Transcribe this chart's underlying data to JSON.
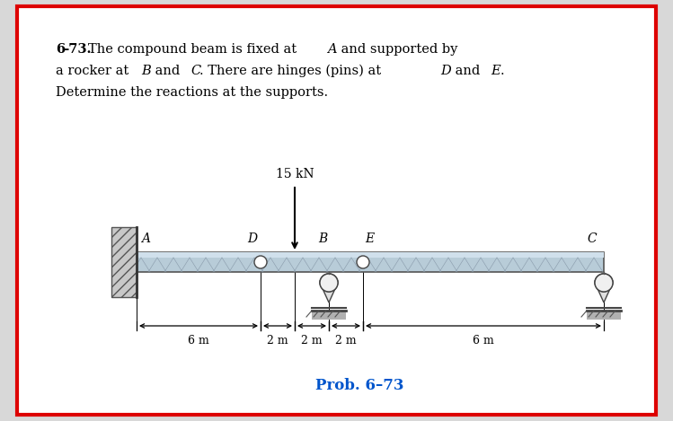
{
  "bg_color": "#d8d8d8",
  "page_color": "#ffffff",
  "border_color": "#dd0000",
  "text_color": "#000000",
  "beam_top_color": "#c8d8e8",
  "beam_bot_color": "#a0b8cc",
  "beam_edge_color": "#555555",
  "wall_hatch_color": "#888888",
  "prob_label": "Prob. 6–73",
  "prob_color": "#0055cc",
  "load_label": "15 kN",
  "dim_6m_left": "6 m",
  "dim_2m_1": "2 m",
  "dim_2m_2": "2 m",
  "dim_2m_3": "2 m",
  "dim_6m_right": "6 m",
  "label_A": "A",
  "label_B": "B",
  "label_C": "C",
  "label_D": "D",
  "label_E": "E",
  "fontsize_text": 10.5,
  "fontsize_label": 10,
  "fontsize_dim": 9,
  "fontsize_prob": 12,
  "fontsize_load": 10
}
